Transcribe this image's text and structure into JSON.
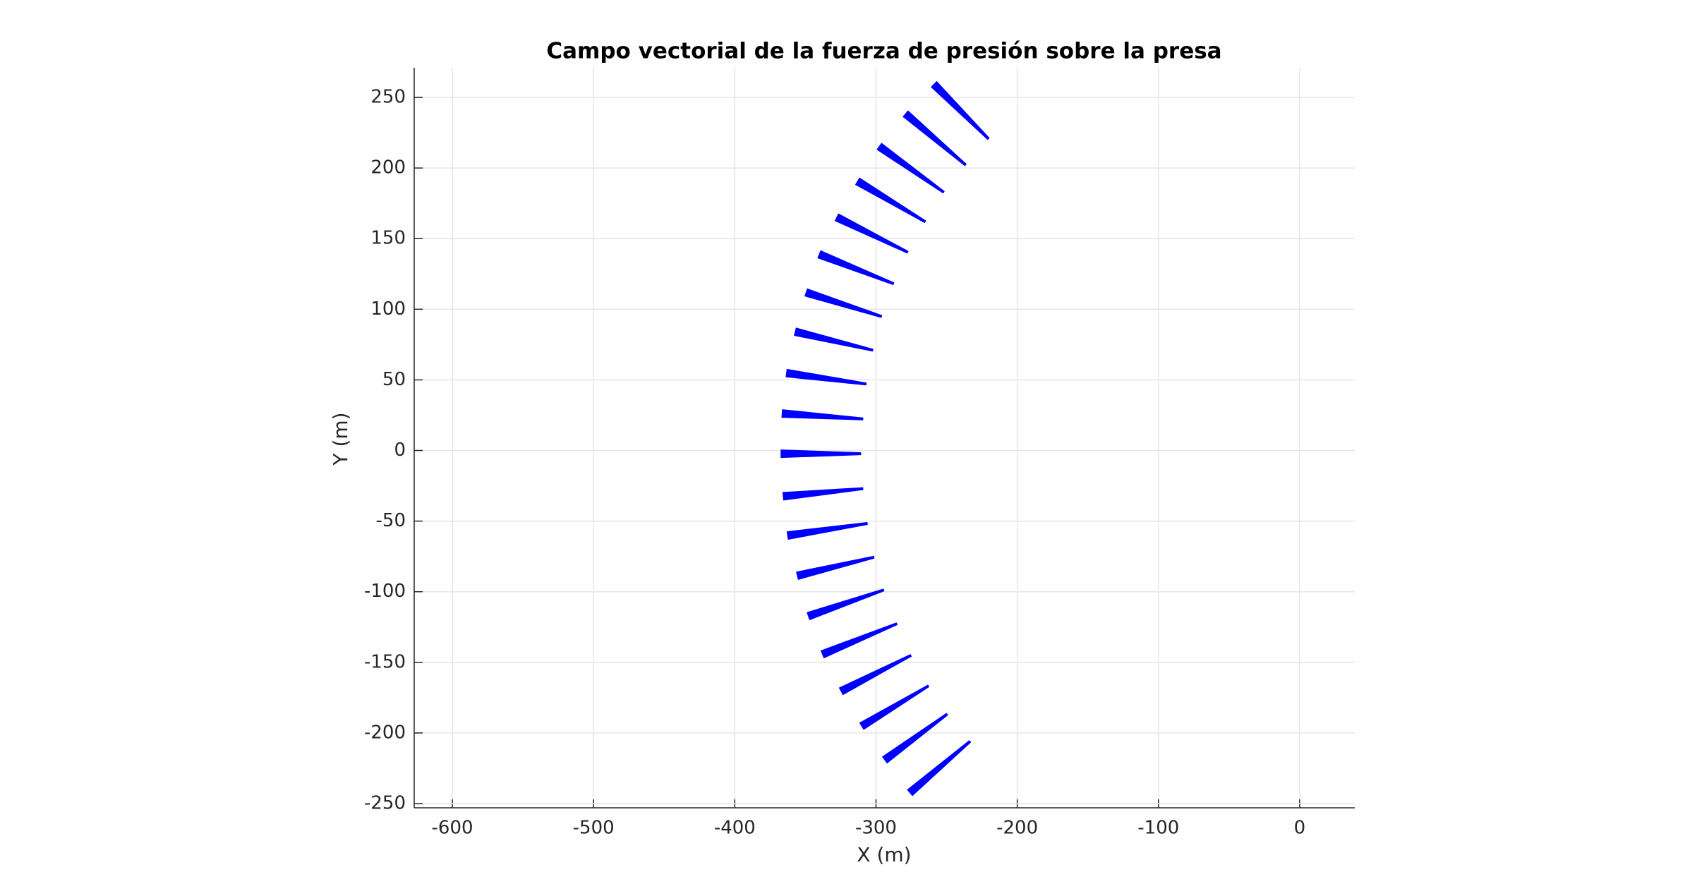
{
  "chart_data": {
    "type": "quiver",
    "title": "Campo vectorial de la fuerza de presión sobre la presa",
    "xlabel": "X (m)",
    "ylabel": "Y (m)",
    "x": [
      -259.0,
      -279.1,
      -297.7,
      -313.1,
      -327.8,
      -340.2,
      -349.5,
      -357.2,
      -363.4,
      -366.5,
      -367.3,
      -365.7,
      -362.6,
      -355.7,
      -347.9,
      -337.9,
      -324.7,
      -310.1,
      -293.8,
      -276.0
    ],
    "y": [
      259.3,
      238.4,
      215.3,
      190.6,
      165.1,
      138.9,
      111.9,
      84.1,
      54.8,
      26.2,
      -2.3,
      -32.4,
      -60.2,
      -88.7,
      -117.3,
      -144.3,
      -170.5,
      -195.2,
      -219.1,
      -242.3
    ],
    "u": [
      38.6,
      42.5,
      45.6,
      47.9,
      50.2,
      52.6,
      53.4,
      54.9,
      56.4,
      57.2,
      56.5,
      56.4,
      56.4,
      54.2,
      53.3,
      52.6,
      49.4,
      47.2,
      44.1,
      42.5
    ],
    "v": [
      -38.6,
      -36.2,
      -32.4,
      -28.6,
      -24.7,
      -20.8,
      -17.0,
      -13.1,
      -7.7,
      -3.8,
      0,
      5.4,
      8.5,
      13.1,
      18.5,
      21.6,
      25.4,
      28.5,
      32.4,
      36.3
    ],
    "color": "#0000ff",
    "xlim": [
      -627,
      39
    ],
    "ylim": [
      -253,
      271
    ],
    "xticks": [
      -600,
      -500,
      -400,
      -300,
      -200,
      -100,
      0
    ],
    "yticks": [
      -250,
      -200,
      -150,
      -100,
      -50,
      0,
      50,
      100,
      150,
      200,
      250
    ],
    "grid": true
  }
}
